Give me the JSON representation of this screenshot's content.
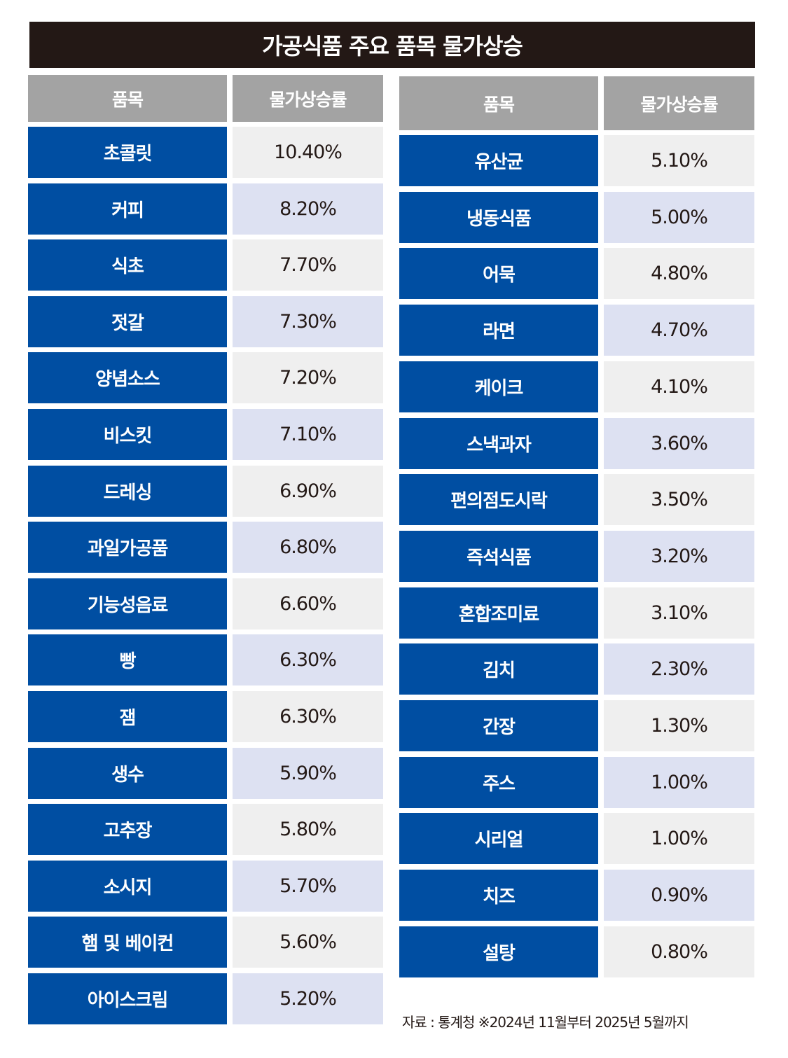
{
  "title": "가공식품 주요 품목 물가상승",
  "chart_data": {
    "type": "table",
    "columns": [
      "품목",
      "물가상승률"
    ],
    "left_rows": [
      {
        "item": "초콜릿",
        "rate": "10.40%"
      },
      {
        "item": "커피",
        "rate": "8.20%"
      },
      {
        "item": "식초",
        "rate": "7.70%"
      },
      {
        "item": "젓갈",
        "rate": "7.30%"
      },
      {
        "item": "양념소스",
        "rate": "7.20%"
      },
      {
        "item": "비스킷",
        "rate": "7.10%"
      },
      {
        "item": "드레싱",
        "rate": "6.90%"
      },
      {
        "item": "과일가공품",
        "rate": "6.80%"
      },
      {
        "item": "기능성음료",
        "rate": "6.60%"
      },
      {
        "item": "빵",
        "rate": "6.30%"
      },
      {
        "item": "잼",
        "rate": "6.30%"
      },
      {
        "item": "생수",
        "rate": "5.90%"
      },
      {
        "item": "고추장",
        "rate": "5.80%"
      },
      {
        "item": "소시지",
        "rate": "5.70%"
      },
      {
        "item": "햄 및 베이컨",
        "rate": "5.60%"
      },
      {
        "item": "아이스크림",
        "rate": "5.20%"
      }
    ],
    "right_rows": [
      {
        "item": "유산균",
        "rate": "5.10%"
      },
      {
        "item": "냉동식품",
        "rate": "5.00%"
      },
      {
        "item": "어묵",
        "rate": "4.80%"
      },
      {
        "item": "라면",
        "rate": "4.70%"
      },
      {
        "item": "케이크",
        "rate": "4.10%"
      },
      {
        "item": "스낵과자",
        "rate": "3.60%"
      },
      {
        "item": "편의점도시락",
        "rate": "3.50%"
      },
      {
        "item": "즉석식품",
        "rate": "3.20%"
      },
      {
        "item": "혼합조미료",
        "rate": "3.10%"
      },
      {
        "item": "김치",
        "rate": "2.30%"
      },
      {
        "item": "간장",
        "rate": "1.30%"
      },
      {
        "item": "주스",
        "rate": "1.00%"
      },
      {
        "item": "시리얼",
        "rate": "1.00%"
      },
      {
        "item": "치즈",
        "rate": "0.90%"
      },
      {
        "item": "설탕",
        "rate": "0.80%"
      }
    ]
  },
  "source": "자료 : 통계청 ※2024년 11월부터 2025년 5월까지",
  "colors": {
    "title_bg": "#231815",
    "header_bg": "#a3a3a3",
    "item_bg": "#004ea2",
    "value_bg_odd": "#efefef",
    "value_bg_even": "#dde1f2"
  }
}
